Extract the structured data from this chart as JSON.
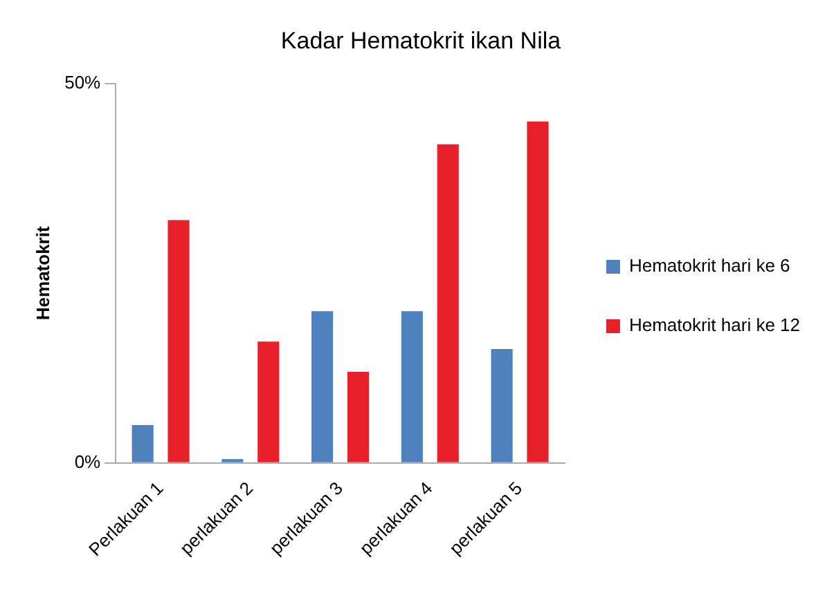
{
  "chart_data": {
    "type": "bar",
    "title": "Kadar Hematokrit ikan Nila",
    "ylabel": "Hematokrit",
    "categories": [
      "Perlakuan 1",
      "perlakuan 2",
      "perlakuan 3",
      "perlakuan 4",
      "perlakuan 5"
    ],
    "series": [
      {
        "name": "Hematokrit hari ke 6",
        "color": "#4f81bd",
        "values": [
          5,
          0.5,
          20,
          20,
          15
        ]
      },
      {
        "name": "Hematokrit hari ke 12",
        "color": "#e8202a",
        "values": [
          32,
          16,
          12,
          42,
          45
        ]
      }
    ],
    "ylim": [
      0,
      50
    ],
    "yticks": [
      {
        "value": 0,
        "label": "0%"
      },
      {
        "value": 50,
        "label": "50%"
      }
    ],
    "grid": false,
    "legend": "right"
  }
}
